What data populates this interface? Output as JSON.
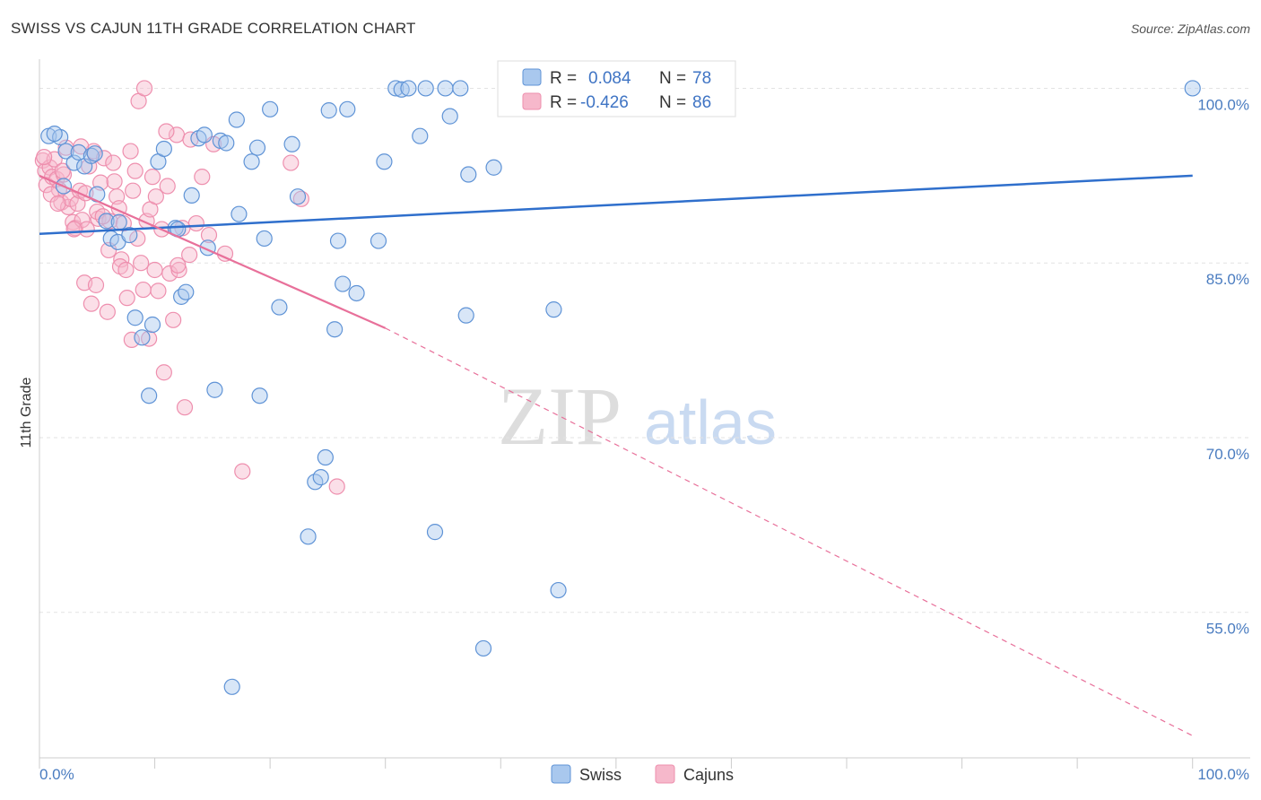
{
  "title": "SWISS VS CAJUN 11TH GRADE CORRELATION CHART",
  "source": "Source: ZipAtlas.com",
  "watermark": {
    "zip": "ZIP",
    "atlas": "atlas"
  },
  "colors": {
    "swiss_fill": "#a9c8ee",
    "swiss_stroke": "#5f93d6",
    "swiss_line": "#2f6fcc",
    "cajun_fill": "#f6b8cb",
    "cajun_stroke": "#ee8fae",
    "cajun_line": "#e8709a",
    "grid": "#e3e3e3",
    "tick_text": "#4a7cc0"
  },
  "legend": {
    "r_label": "R =",
    "n_label": "N =",
    "swiss": {
      "r": "0.084",
      "n": "78"
    },
    "cajun": {
      "r": "-0.426",
      "n": "86"
    }
  },
  "chart_data": {
    "type": "scatter",
    "title": "SWISS VS CAJUN 11TH GRADE CORRELATION CHART",
    "xlabel": "",
    "ylabel": "11th Grade",
    "xlim": [
      0,
      105
    ],
    "ylim": [
      42.5,
      102.5
    ],
    "x_tick_labels": [
      "0.0%",
      "100.0%"
    ],
    "y_ticks": [
      55,
      70,
      85,
      100
    ],
    "y_tick_labels": [
      "55.0%",
      "70.0%",
      "85.0%",
      "100.0%"
    ],
    "legend_position": "top-center",
    "series": [
      {
        "name": "Swiss",
        "r": 0.084,
        "n": 78,
        "trend": {
          "x0": 0,
          "y0": 87.5,
          "x1": 100,
          "y1": 92.5
        },
        "points": [
          [
            0.8,
            95.9
          ],
          [
            1.8,
            95.8
          ],
          [
            2.3,
            94.6
          ],
          [
            3.0,
            93.6
          ],
          [
            3.4,
            94.5
          ],
          [
            3.9,
            93.3
          ],
          [
            4.5,
            94.2
          ],
          [
            4.8,
            94.4
          ],
          [
            5.0,
            90.9
          ],
          [
            5.8,
            88.6
          ],
          [
            6.2,
            87.1
          ],
          [
            6.8,
            86.8
          ],
          [
            7.8,
            87.4
          ],
          [
            8.3,
            80.3
          ],
          [
            9.5,
            73.6
          ],
          [
            9.8,
            79.7
          ],
          [
            8.9,
            78.6
          ],
          [
            10.3,
            93.7
          ],
          [
            10.8,
            94.8
          ],
          [
            11.8,
            88.0
          ],
          [
            12.0,
            87.9
          ],
          [
            12.3,
            82.1
          ],
          [
            12.7,
            82.5
          ],
          [
            13.2,
            90.8
          ],
          [
            13.8,
            95.7
          ],
          [
            14.3,
            96.0
          ],
          [
            14.6,
            86.3
          ],
          [
            15.2,
            74.1
          ],
          [
            15.7,
            95.5
          ],
          [
            16.2,
            95.3
          ],
          [
            17.1,
            97.3
          ],
          [
            17.3,
            89.2
          ],
          [
            18.4,
            93.7
          ],
          [
            18.9,
            94.9
          ],
          [
            19.1,
            73.6
          ],
          [
            19.5,
            87.1
          ],
          [
            20.0,
            98.2
          ],
          [
            20.8,
            81.2
          ],
          [
            21.9,
            95.2
          ],
          [
            22.4,
            90.7
          ],
          [
            23.3,
            61.5
          ],
          [
            23.9,
            66.2
          ],
          [
            24.4,
            66.6
          ],
          [
            24.8,
            68.3
          ],
          [
            25.1,
            98.1
          ],
          [
            25.6,
            79.3
          ],
          [
            25.9,
            86.9
          ],
          [
            26.3,
            83.2
          ],
          [
            26.7,
            98.2
          ],
          [
            27.5,
            82.4
          ],
          [
            16.7,
            48.6
          ],
          [
            29.4,
            86.9
          ],
          [
            29.9,
            93.7
          ],
          [
            30.9,
            100.0
          ],
          [
            31.4,
            99.9
          ],
          [
            32.0,
            100.0
          ],
          [
            33.0,
            95.9
          ],
          [
            33.5,
            100.0
          ],
          [
            34.3,
            61.9
          ],
          [
            35.2,
            100.0
          ],
          [
            35.6,
            97.6
          ],
          [
            36.5,
            100.0
          ],
          [
            37.0,
            80.5
          ],
          [
            37.2,
            92.6
          ],
          [
            38.5,
            51.9
          ],
          [
            39.4,
            93.2
          ],
          [
            41.0,
            100.0
          ],
          [
            41.6,
            100.0
          ],
          [
            43.0,
            100.0
          ],
          [
            44.6,
            81.0
          ],
          [
            45.0,
            56.9
          ],
          [
            46.1,
            100.0
          ],
          [
            47.3,
            100.0
          ],
          [
            49.0,
            100.0
          ],
          [
            100.0,
            100.0
          ],
          [
            1.3,
            96.1
          ],
          [
            2.1,
            91.6
          ],
          [
            6.9,
            88.5
          ]
        ]
      },
      {
        "name": "Cajuns",
        "r": -0.426,
        "n": 86,
        "trend": {
          "x0": 0,
          "y0": 92.5,
          "x1": 30,
          "y1": 79.4,
          "dash_x1": 100,
          "dash_y1": 44.4
        },
        "points": [
          [
            0.3,
            93.8
          ],
          [
            0.5,
            92.9
          ],
          [
            0.6,
            91.7
          ],
          [
            0.9,
            93.2
          ],
          [
            1.1,
            92.4
          ],
          [
            1.3,
            93.9
          ],
          [
            1.5,
            92.2
          ],
          [
            1.7,
            91.3
          ],
          [
            1.9,
            90.2
          ],
          [
            2.1,
            92.6
          ],
          [
            2.3,
            94.9
          ],
          [
            2.5,
            89.8
          ],
          [
            2.7,
            90.5
          ],
          [
            2.9,
            88.5
          ],
          [
            3.1,
            88.0
          ],
          [
            3.3,
            90.1
          ],
          [
            3.5,
            91.2
          ],
          [
            3.7,
            88.7
          ],
          [
            3.9,
            83.3
          ],
          [
            4.1,
            87.9
          ],
          [
            4.3,
            93.3
          ],
          [
            4.5,
            81.5
          ],
          [
            4.7,
            94.6
          ],
          [
            4.9,
            83.1
          ],
          [
            5.1,
            88.8
          ],
          [
            5.3,
            91.9
          ],
          [
            5.6,
            94.0
          ],
          [
            5.9,
            80.8
          ],
          [
            6.1,
            88.6
          ],
          [
            6.4,
            93.6
          ],
          [
            6.7,
            90.7
          ],
          [
            6.9,
            89.7
          ],
          [
            7.1,
            85.3
          ],
          [
            7.3,
            88.4
          ],
          [
            7.6,
            82.0
          ],
          [
            7.9,
            94.6
          ],
          [
            8.1,
            91.2
          ],
          [
            8.3,
            92.9
          ],
          [
            8.5,
            87.1
          ],
          [
            8.6,
            98.9
          ],
          [
            8.8,
            85.0
          ],
          [
            9.1,
            100.0
          ],
          [
            9.3,
            88.6
          ],
          [
            9.6,
            89.6
          ],
          [
            9.8,
            92.4
          ],
          [
            10.1,
            90.7
          ],
          [
            10.3,
            82.6
          ],
          [
            10.6,
            87.9
          ],
          [
            10.8,
            75.6
          ],
          [
            11.1,
            91.6
          ],
          [
            11.3,
            84.1
          ],
          [
            11.6,
            80.1
          ],
          [
            11.9,
            96.0
          ],
          [
            12.1,
            84.4
          ],
          [
            12.6,
            72.6
          ],
          [
            13.1,
            95.6
          ],
          [
            13.6,
            88.4
          ],
          [
            14.1,
            92.4
          ],
          [
            14.7,
            87.4
          ],
          [
            15.1,
            95.2
          ],
          [
            16.1,
            85.8
          ],
          [
            17.6,
            67.1
          ],
          [
            21.8,
            93.6
          ],
          [
            22.7,
            90.5
          ],
          [
            25.8,
            65.8
          ],
          [
            1.0,
            90.9
          ],
          [
            2.0,
            92.9
          ],
          [
            3.0,
            87.9
          ],
          [
            4.0,
            91.0
          ],
          [
            5.0,
            89.4
          ],
          [
            6.0,
            86.1
          ],
          [
            7.0,
            84.7
          ],
          [
            8.0,
            78.4
          ],
          [
            9.0,
            82.7
          ],
          [
            10.0,
            84.4
          ],
          [
            11.0,
            96.3
          ],
          [
            12.0,
            84.8
          ],
          [
            13.0,
            85.7
          ],
          [
            6.5,
            92.0
          ],
          [
            7.5,
            84.4
          ],
          [
            5.5,
            89.0
          ],
          [
            9.5,
            78.5
          ],
          [
            0.4,
            94.1
          ],
          [
            1.6,
            90.1
          ],
          [
            3.6,
            95.0
          ],
          [
            12.4,
            88.0
          ]
        ]
      }
    ]
  },
  "bottom_legend": {
    "swiss": "Swiss",
    "cajuns": "Cajuns"
  }
}
